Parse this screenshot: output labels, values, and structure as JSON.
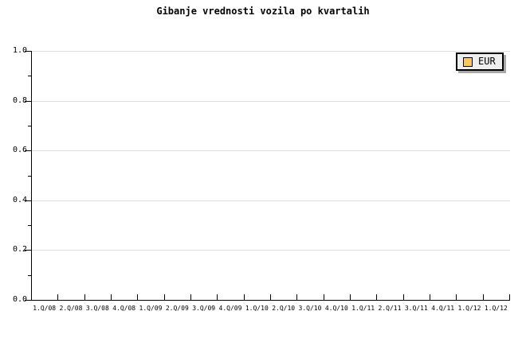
{
  "chart_data": {
    "type": "line",
    "title": "Gibanje vrednosti vozila po kvartalih",
    "categories": [
      "1.Q/08",
      "2.Q/08",
      "3.Q/08",
      "4.Q/08",
      "1.Q/09",
      "2.Q/09",
      "3.Q/09",
      "4.Q/09",
      "1.Q/10",
      "2.Q/10",
      "3.Q/10",
      "4.Q/10",
      "1.Q/11",
      "2.Q/11",
      "3.Q/11",
      "4.Q/11",
      "1.Q/12",
      "1.Q/12"
    ],
    "series": [
      {
        "name": "EUR",
        "color": "#fac46a",
        "values": []
      }
    ],
    "xlabel": "",
    "ylabel": "",
    "ylim": [
      0.0,
      1.0
    ],
    "yticks": [
      0.0,
      0.2,
      0.4,
      0.6,
      0.8,
      1.0
    ],
    "ytick_labels": [
      "0.0",
      "0.2",
      "0.4",
      "0.6",
      "0.8",
      "1.0"
    ],
    "minor_yticks": [
      0.1,
      0.3,
      0.5,
      0.7,
      0.9
    ],
    "grid": "horizontal-major-only",
    "legend_position": "top-right"
  },
  "legend": {
    "entries": [
      {
        "label": "EUR",
        "swatch_color": "#fac46a"
      }
    ]
  },
  "colors": {
    "background": "#ffffff",
    "axis": "#000000",
    "gridline": "#dcdcdc",
    "text": "#000000",
    "legend_background": "#eeeeee",
    "legend_border": "#000000",
    "legend_shadow": "#a9a9a9",
    "series_eur": "#fac46a"
  }
}
